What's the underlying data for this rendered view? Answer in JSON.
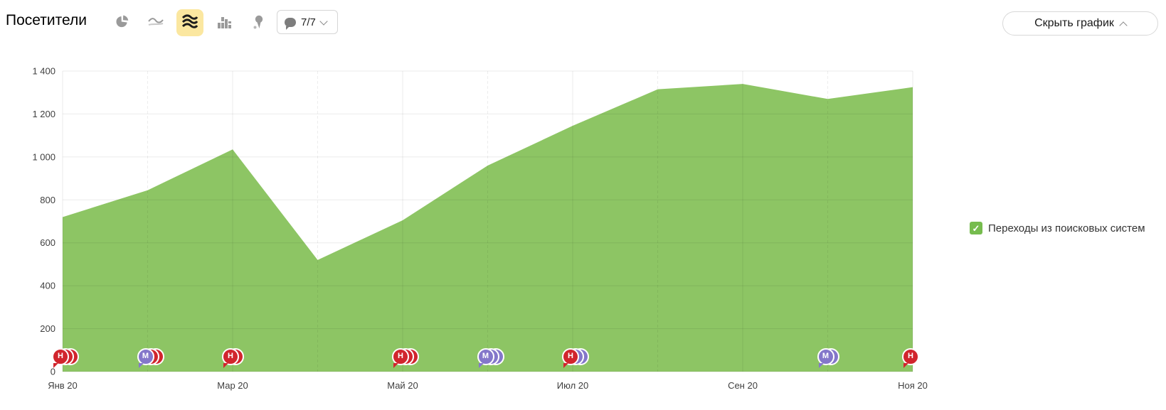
{
  "header": {
    "title": "Посетители",
    "chart_type_icons": [
      {
        "name": "pie",
        "selected": false
      },
      {
        "name": "line",
        "selected": false
      },
      {
        "name": "area",
        "selected": true
      },
      {
        "name": "columns",
        "selected": false
      },
      {
        "name": "map",
        "selected": false
      }
    ],
    "annotations_dropdown": {
      "label": "7/7"
    },
    "hide_button_label": "Скрыть график"
  },
  "legend": {
    "items": [
      {
        "label": "Переходы из поисковых систем",
        "checked": true,
        "color": "#76bc4e"
      }
    ]
  },
  "chart_data": {
    "type": "area",
    "title": "Посетители",
    "series": [
      {
        "name": "Переходы из поисковых систем",
        "color": "#8dc564",
        "values": [
          720,
          845,
          1035,
          520,
          705,
          960,
          1145,
          1315,
          1340,
          1270,
          1325
        ]
      }
    ],
    "x_ticks": [
      {
        "index": 0,
        "label": "Янв 20"
      },
      {
        "index": 2,
        "label": "Мар 20"
      },
      {
        "index": 4,
        "label": "Май 20"
      },
      {
        "index": 6,
        "label": "Июл 20"
      },
      {
        "index": 8,
        "label": "Сен 20"
      },
      {
        "index": 10,
        "label": "Ноя 20"
      }
    ],
    "y_ticks": [
      {
        "value": 0,
        "label": "0"
      },
      {
        "value": 200,
        "label": "200"
      },
      {
        "value": 400,
        "label": "400"
      },
      {
        "value": 600,
        "label": "600"
      },
      {
        "value": 800,
        "label": "800"
      },
      {
        "value": 1000,
        "label": "1 000"
      },
      {
        "value": 1200,
        "label": "1 200"
      },
      {
        "value": 1400,
        "label": "1 400"
      }
    ],
    "ylim": [
      0,
      1400
    ],
    "grid": true,
    "legend_position": "right"
  },
  "annotation_colors": {
    "red": "#d1252d",
    "purple": "#8477ca"
  },
  "annotations": [
    {
      "month_index": 0,
      "letter": "Н",
      "color": "red",
      "stack": [
        {
          "color": "red"
        },
        {
          "color": "red"
        }
      ]
    },
    {
      "month_index": 1,
      "letter": "М",
      "color": "purple",
      "stack": [
        {
          "color": "red"
        },
        {
          "color": "red"
        }
      ]
    },
    {
      "month_index": 2,
      "letter": "Н",
      "color": "red",
      "stack": [
        {
          "color": "red"
        }
      ]
    },
    {
      "month_index": 4,
      "letter": "Н",
      "color": "red",
      "stack": [
        {
          "color": "red"
        },
        {
          "color": "red"
        }
      ]
    },
    {
      "month_index": 5,
      "letter": "М",
      "color": "purple",
      "stack": [
        {
          "color": "purple"
        },
        {
          "color": "purple"
        }
      ]
    },
    {
      "month_index": 6,
      "letter": "Н",
      "color": "red",
      "stack": [
        {
          "color": "purple"
        },
        {
          "color": "purple"
        }
      ]
    },
    {
      "month_index": 9,
      "letter": "М",
      "color": "purple",
      "stack": [
        {
          "color": "purple"
        }
      ]
    },
    {
      "month_index": 10,
      "letter": "Н",
      "color": "red",
      "stack": []
    }
  ]
}
